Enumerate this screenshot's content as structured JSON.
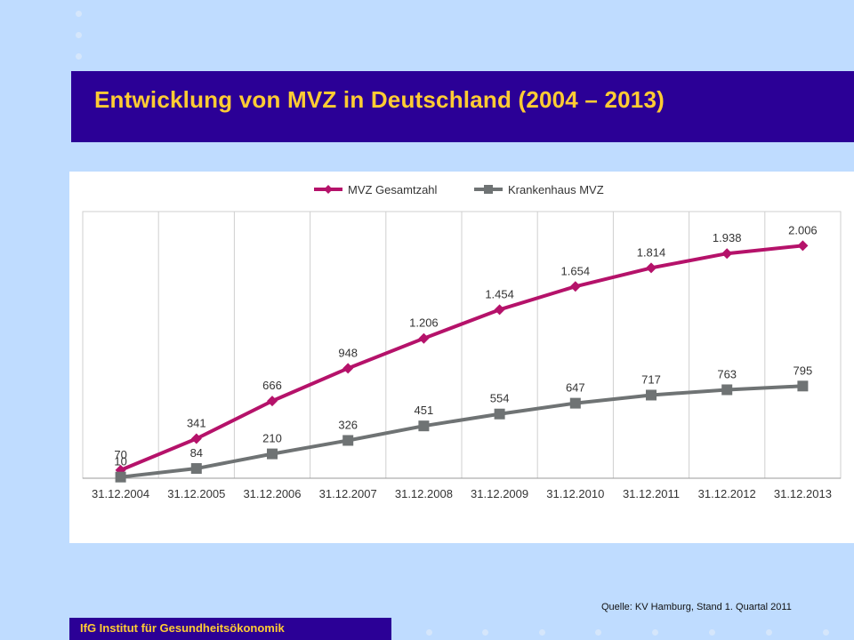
{
  "slide": {
    "title": "Entwicklung von MVZ in Deutschland (2004 – 2013)",
    "source": "Quelle: KV Hamburg, Stand 1. Quartal 2011",
    "footer": "IfG Institut für Gesundheitsökonomik"
  },
  "colors": {
    "background": "#bfdcff",
    "title_bar": "#2b0096",
    "title_text": "#ffcc33",
    "series_total": "#b5126a",
    "series_hospital": "#6f7374"
  },
  "chart_data": {
    "type": "line",
    "title": "",
    "xlabel": "",
    "ylabel": "",
    "ylim": [
      0,
      2300
    ],
    "grid": "vertical",
    "legend": "top-center",
    "categories": [
      "31.12.2004",
      "31.12.2005",
      "31.12.2006",
      "31.12.2007",
      "31.12.2008",
      "31.12.2009",
      "31.12.2010",
      "31.12.2011",
      "31.12.2012",
      "31.12.2013"
    ],
    "series": [
      {
        "name": "MVZ Gesamtzahl",
        "values": [
          70,
          341,
          666,
          948,
          1206,
          1454,
          1654,
          1814,
          1938,
          2006
        ],
        "labels": [
          "70",
          "341",
          "666",
          "948",
          "1.206",
          "1.454",
          "1.654",
          "1.814",
          "1.938",
          "2.006"
        ]
      },
      {
        "name": "Krankenhaus MVZ",
        "values": [
          10,
          84,
          210,
          326,
          451,
          554,
          647,
          717,
          763,
          795
        ],
        "labels": [
          "10",
          "84",
          "210",
          "326",
          "451",
          "554",
          "647",
          "717",
          "763",
          "795"
        ]
      }
    ]
  }
}
